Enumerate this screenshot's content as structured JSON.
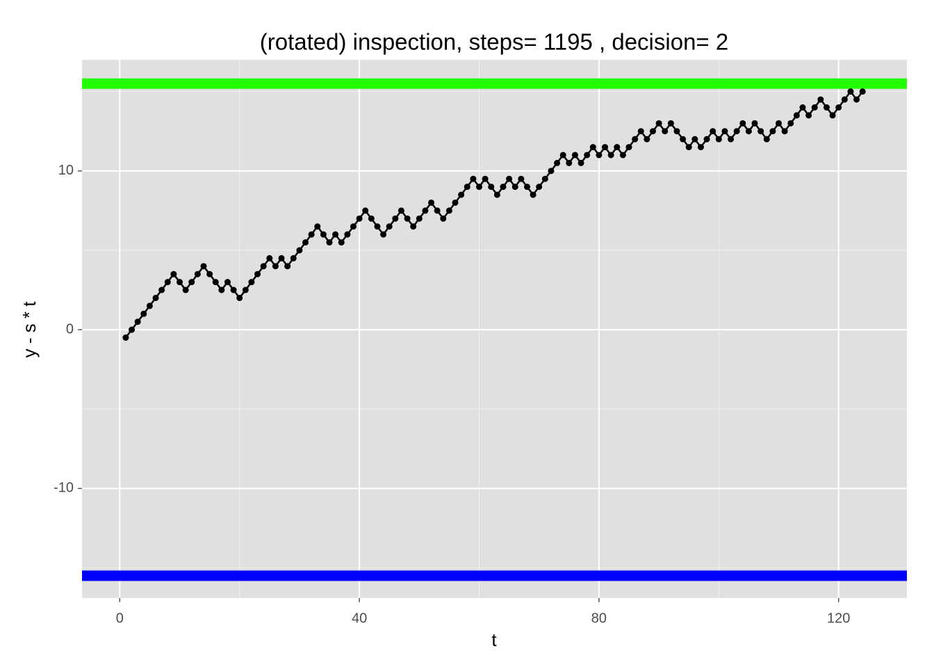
{
  "chart_data": {
    "type": "line",
    "title": "(rotated) inspection, steps= 1195 , decision= 2",
    "xlabel": "t",
    "ylabel": "y - s * t",
    "x": [
      1,
      2,
      3,
      4,
      5,
      6,
      7,
      8,
      9,
      10,
      11,
      12,
      13,
      14,
      15,
      16,
      17,
      18,
      19,
      20,
      21,
      22,
      23,
      24,
      25,
      26,
      27,
      28,
      29,
      30,
      31,
      32,
      33,
      34,
      35,
      36,
      37,
      38,
      39,
      40,
      41,
      42,
      43,
      44,
      45,
      46,
      47,
      48,
      49,
      50,
      51,
      52,
      53,
      54,
      55,
      56,
      57,
      58,
      59,
      60,
      61,
      62,
      63,
      64,
      65,
      66,
      67,
      68,
      69,
      70,
      71,
      72,
      73,
      74,
      75,
      76,
      77,
      78,
      79,
      80,
      81,
      82,
      83,
      84,
      85,
      86,
      87,
      88,
      89,
      90,
      91,
      92,
      93,
      94,
      95,
      96,
      97,
      98,
      99,
      100,
      101,
      102,
      103,
      104,
      105,
      106,
      107,
      108,
      109,
      110,
      111,
      112,
      113,
      114,
      115,
      116,
      117,
      118,
      119,
      120,
      121,
      122,
      123,
      124
    ],
    "series": [
      {
        "color": "#000000",
        "values": [
          -0.5,
          0,
          0.5,
          1,
          1.5,
          2,
          2.5,
          3,
          3.5,
          3,
          2.5,
          3,
          3.5,
          4,
          3.5,
          3,
          2.5,
          3,
          2.5,
          2,
          2.5,
          3,
          3.5,
          4,
          4.5,
          4,
          4.5,
          4,
          4.5,
          5,
          5.5,
          6,
          6.5,
          6,
          5.5,
          6,
          5.5,
          6,
          6.5,
          7,
          7.5,
          7,
          6.5,
          6,
          6.5,
          7,
          7.5,
          7,
          6.5,
          7,
          7.5,
          8,
          7.5,
          7,
          7.5,
          8,
          8.5,
          9,
          9.5,
          9,
          9.5,
          9,
          8.5,
          9,
          9.5,
          9,
          9.5,
          9,
          8.5,
          9,
          9.5,
          10,
          10.5,
          11,
          10.5,
          11,
          10.5,
          11,
          11.5,
          11,
          11.5,
          11,
          11.5,
          11,
          11.5,
          12,
          12.5,
          12,
          12.5,
          13,
          12.5,
          13,
          12.5,
          12,
          11.5,
          12,
          11.5,
          12,
          12.5,
          12,
          12.5,
          12,
          12.5,
          13,
          12.5,
          13,
          12.5,
          12,
          12.5,
          13,
          12.5,
          13,
          13.5,
          14,
          13.5,
          14,
          14.5,
          14,
          13.5,
          14,
          14.5,
          15,
          14.5,
          15
        ]
      }
    ],
    "hlines": [
      {
        "y": 15.5,
        "color": "#22ff00"
      },
      {
        "y": -15.5,
        "color": "#0000ff"
      }
    ],
    "xlim": [
      -6.3,
      131.4
    ],
    "ylim": [
      -16.9,
      17.0
    ],
    "xticks": [
      0,
      40,
      80,
      120
    ],
    "yticks": [
      -10,
      0,
      10
    ],
    "grid": true
  }
}
